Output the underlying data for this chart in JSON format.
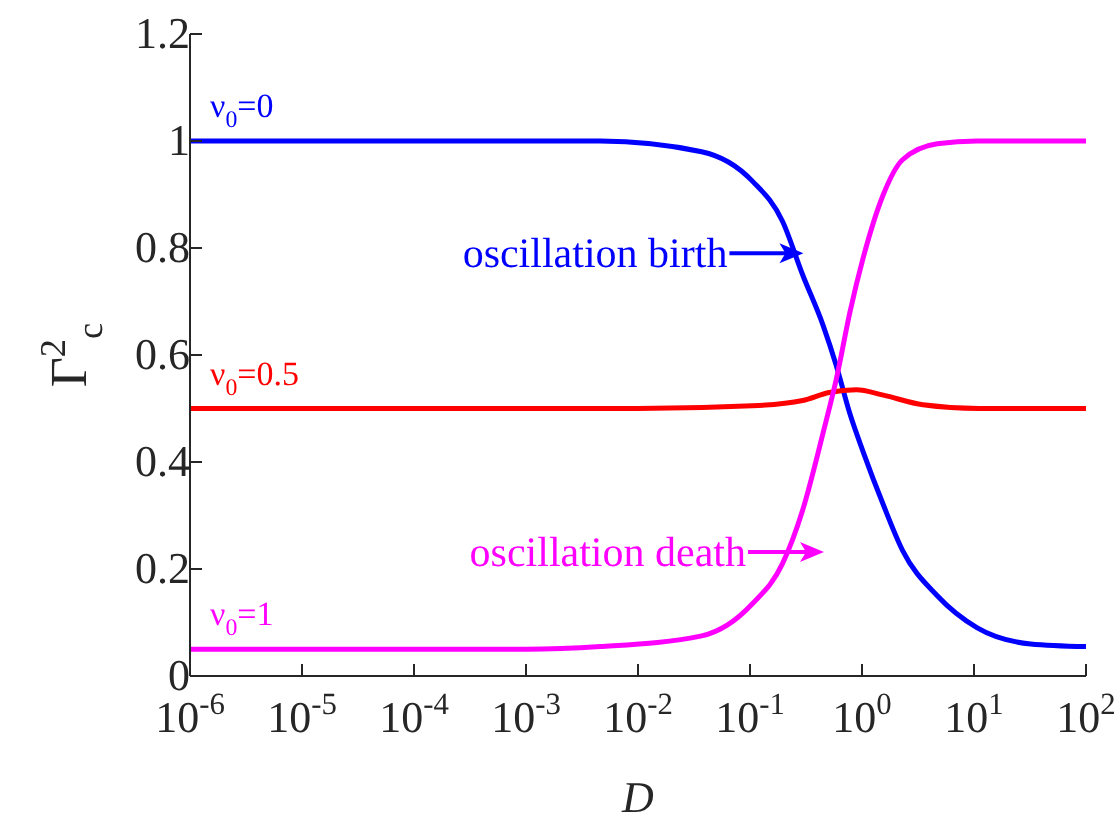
{
  "chart_data": {
    "type": "line",
    "xlabel": "D",
    "ylabel": "Γ$^{2}$$_{c}$",
    "log": "x",
    "grid": false,
    "legend": false,
    "marker": "none",
    "line_style": "solid",
    "xlim": [
      1e-06,
      100
    ],
    "xticks": [
      {
        "value": 1e-06,
        "label": "10$^{-6}$"
      },
      {
        "value": 1e-05,
        "label": "10$^{-5}$"
      },
      {
        "value": 0.0001,
        "label": "10$^{-4}$"
      },
      {
        "value": 0.001,
        "label": "10$^{-3}$"
      },
      {
        "value": 0.01,
        "label": "10$^{-2}$"
      },
      {
        "value": 0.1,
        "label": "10$^{-1}$"
      },
      {
        "value": 1,
        "label": "10$^{0}$"
      },
      {
        "value": 10,
        "label": "10$^{1}$"
      },
      {
        "value": 100,
        "label": "10$^{2}$"
      }
    ],
    "ylim": [
      0,
      1.2
    ],
    "yticks": [
      0,
      0.2,
      0.4,
      0.6,
      0.8,
      1,
      1.2
    ],
    "series": [
      {
        "name": "ν$_{0}$=0",
        "color": "#0000ff",
        "x": [
          1e-06,
          0.001,
          0.0046,
          0.037,
          0.105,
          0.195,
          0.295,
          0.45,
          0.59,
          0.78,
          1.02,
          1.55,
          2.3,
          4.7,
          10.7,
          32,
          100
        ],
        "values": [
          1,
          1,
          1,
          0.98,
          0.925,
          0.85,
          0.75,
          0.655,
          0.58,
          0.49,
          0.42,
          0.32,
          0.235,
          0.15,
          0.09,
          0.06,
          0.055
        ]
      },
      {
        "name": "ν$_{0}$=0.5",
        "color": "#ff0000",
        "x": [
          1e-06,
          0.01,
          0.105,
          0.295,
          0.51,
          0.89,
          1.55,
          3.5,
          11,
          100
        ],
        "values": [
          0.5,
          0.5,
          0.505,
          0.515,
          0.53,
          0.535,
          0.525,
          0.507,
          0.5,
          0.5
        ]
      },
      {
        "name": "ν$_{0}$=1",
        "color": "#ff00ff",
        "x": [
          1e-06,
          0.001,
          0.0046,
          0.037,
          0.105,
          0.195,
          0.295,
          0.45,
          0.59,
          0.78,
          1.02,
          1.55,
          2.3,
          4.7,
          10.7,
          100
        ],
        "values": [
          0.05,
          0.05,
          0.055,
          0.075,
          0.135,
          0.21,
          0.31,
          0.455,
          0.555,
          0.68,
          0.78,
          0.9,
          0.965,
          0.995,
          1,
          1
        ]
      }
    ],
    "annotations": [
      {
        "text": "oscillation birth",
        "x": 0.3,
        "y": 0.79
      },
      "oscillation death"
    ]
  }
}
